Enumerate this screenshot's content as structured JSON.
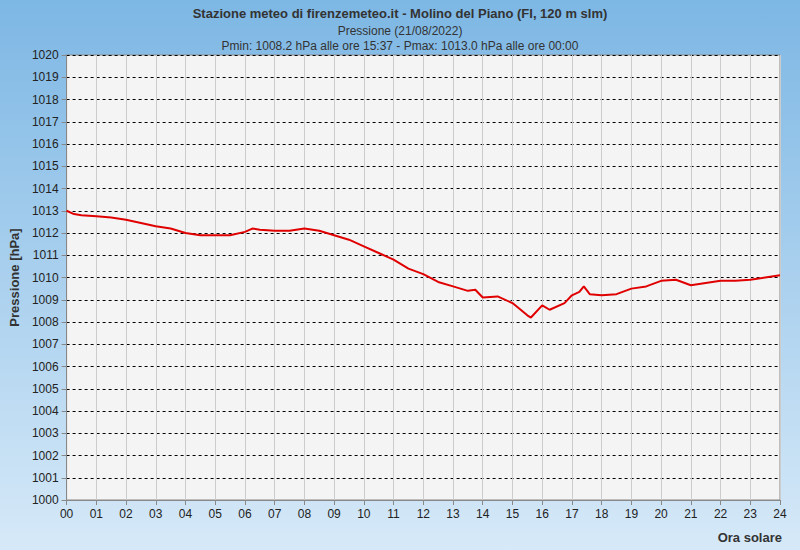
{
  "chart_data": {
    "type": "line",
    "title": "Stazione meteo di firenzemeteo.it - Molino del Piano (FI, 120 m slm)",
    "subtitle": [
      "Pressione (21/08/2022)",
      "Pmin: 1008.2 hPa alle ore 15:37 - Pmax: 1013.0 hPa alle ore 00:00"
    ],
    "x_label": "Ora solare",
    "y_label": "Pressione [hPa]",
    "x": [
      0,
      0.25,
      0.5,
      1,
      1.5,
      2,
      2.5,
      3,
      3.5,
      4,
      4.5,
      5,
      5.5,
      6,
      6.25,
      6.5,
      7,
      7.5,
      8,
      8.5,
      9,
      9.5,
      10,
      10.5,
      11,
      11.5,
      12,
      12.5,
      13,
      13.5,
      13.75,
      14,
      14.5,
      15,
      15.5,
      15.62,
      16,
      16.25,
      16.75,
      17,
      17.25,
      17.4,
      17.6,
      18,
      18.5,
      19,
      19.5,
      20,
      20.5,
      21,
      21.5,
      22,
      22.5,
      23,
      23.5,
      24
    ],
    "values": [
      1013.0,
      1012.85,
      1012.8,
      1012.75,
      1012.7,
      1012.6,
      1012.45,
      1012.3,
      1012.2,
      1012.0,
      1011.9,
      1011.9,
      1011.9,
      1012.05,
      1012.2,
      1012.15,
      1012.1,
      1012.1,
      1012.2,
      1012.1,
      1011.9,
      1011.7,
      1011.4,
      1011.1,
      1010.8,
      1010.4,
      1010.15,
      1009.8,
      1009.6,
      1009.4,
      1009.45,
      1009.1,
      1009.15,
      1008.85,
      1008.3,
      1008.2,
      1008.75,
      1008.55,
      1008.85,
      1009.2,
      1009.35,
      1009.6,
      1009.25,
      1009.2,
      1009.25,
      1009.5,
      1009.6,
      1009.85,
      1009.9,
      1009.65,
      1009.75,
      1009.85,
      1009.85,
      1009.9,
      1010.0,
      1010.1
    ],
    "color": "#e00000",
    "xlim": [
      0,
      24
    ],
    "xticks": [
      {
        "value": 0,
        "label": "00"
      },
      {
        "value": 1,
        "label": "01"
      },
      {
        "value": 2,
        "label": "02"
      },
      {
        "value": 3,
        "label": "03"
      },
      {
        "value": 4,
        "label": "04"
      },
      {
        "value": 5,
        "label": "05"
      },
      {
        "value": 6,
        "label": "06"
      },
      {
        "value": 7,
        "label": "07"
      },
      {
        "value": 8,
        "label": "08"
      },
      {
        "value": 9,
        "label": "09"
      },
      10,
      11,
      12,
      13,
      14,
      15,
      16,
      17,
      18,
      19,
      20,
      21,
      22,
      23,
      24
    ],
    "ylim": [
      1000,
      1020
    ],
    "yticks": [
      1000,
      1001,
      1002,
      1003,
      1004,
      1005,
      1006,
      1007,
      1008,
      1009,
      1010,
      1011,
      1012,
      1013,
      1014,
      1015,
      1016,
      1017,
      1018,
      1019,
      1020
    ],
    "grid": true
  }
}
